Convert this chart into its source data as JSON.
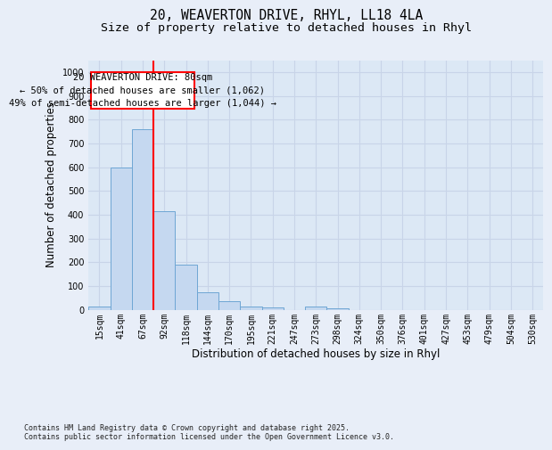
{
  "title_line1": "20, WEAVERTON DRIVE, RHYL, LL18 4LA",
  "title_line2": "Size of property relative to detached houses in Rhyl",
  "xlabel": "Distribution of detached houses by size in Rhyl",
  "ylabel": "Number of detached properties",
  "categories": [
    "15sqm",
    "41sqm",
    "67sqm",
    "92sqm",
    "118sqm",
    "144sqm",
    "170sqm",
    "195sqm",
    "221sqm",
    "247sqm",
    "273sqm",
    "298sqm",
    "324sqm",
    "350sqm",
    "376sqm",
    "401sqm",
    "427sqm",
    "453sqm",
    "479sqm",
    "504sqm",
    "530sqm"
  ],
  "bar_values": [
    15,
    600,
    760,
    415,
    190,
    75,
    35,
    12,
    8,
    0,
    12,
    5,
    0,
    0,
    0,
    0,
    0,
    0,
    0,
    0,
    0
  ],
  "bar_color": "#c5d8f0",
  "bar_edge_color": "#6ea6d4",
  "vline_color": "red",
  "annotation_box_text": "20 WEAVERTON DRIVE: 80sqm\n← 50% of detached houses are smaller (1,062)\n49% of semi-detached houses are larger (1,044) →",
  "annotation_text_fontsize": 7.5,
  "ylim": [
    0,
    1050
  ],
  "yticks": [
    0,
    100,
    200,
    300,
    400,
    500,
    600,
    700,
    800,
    900,
    1000
  ],
  "grid_color": "#c8d4e8",
  "background_color": "#dce8f5",
  "footer_text": "Contains HM Land Registry data © Crown copyright and database right 2025.\nContains public sector information licensed under the Open Government Licence v3.0.",
  "title_fontsize": 10.5,
  "subtitle_fontsize": 9.5,
  "label_fontsize": 8.5,
  "tick_fontsize": 7,
  "fig_bg": "#e8eef8"
}
